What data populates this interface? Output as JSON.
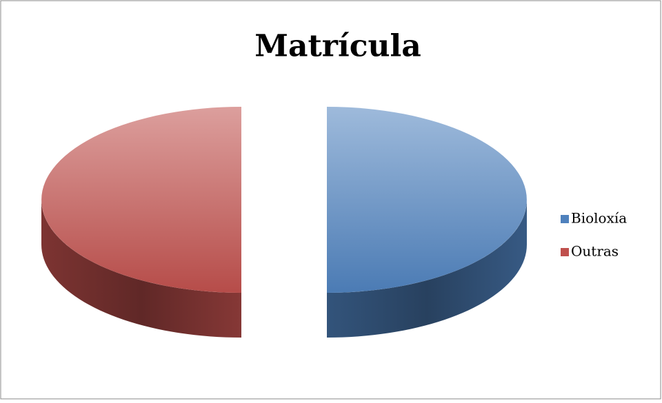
{
  "chart_data": {
    "type": "pie",
    "title": "Matrícula",
    "categories": [
      "Bioloxía",
      "Outras"
    ],
    "values": [
      50,
      50
    ],
    "colors": [
      "#4f81bd",
      "#c0504d"
    ],
    "legend": "right"
  }
}
